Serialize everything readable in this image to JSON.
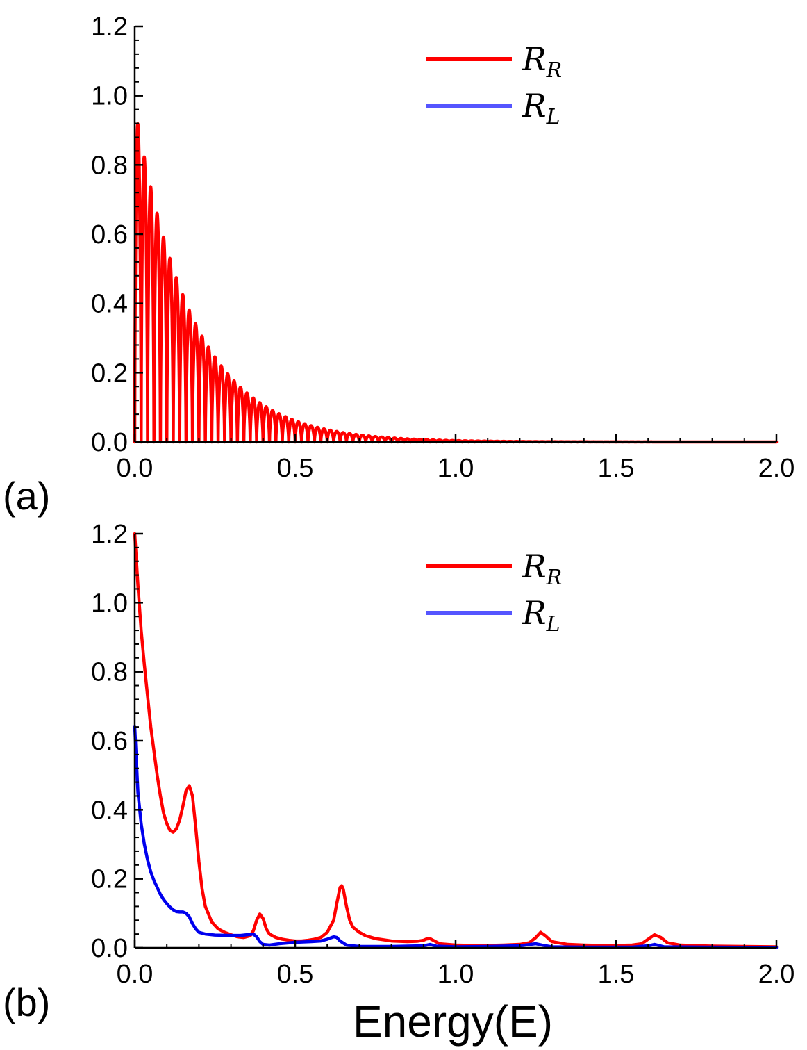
{
  "figure": {
    "xlabel": "Energy(E)",
    "panel_labels": [
      "(a)",
      "(b)"
    ]
  },
  "colors": {
    "R_R": "#ff0000",
    "R_L_legend": "#5555ff",
    "R_L_line": "#0000ee",
    "axis": "#000000"
  },
  "chart_data": [
    {
      "type": "line",
      "panel": "(a)",
      "xlim": [
        0,
        2.0
      ],
      "ylim": [
        0,
        1.2
      ],
      "xticks": [
        "0.0",
        "0.5",
        "1.0",
        "1.5",
        "2.0"
      ],
      "yticks": [
        "0.0",
        "0.2",
        "0.4",
        "0.6",
        "0.8",
        "1.0",
        "1.2"
      ],
      "legend": {
        "position": "top-right",
        "entries": [
          {
            "symbol": "R",
            "sub": "R",
            "color": "#ff0000"
          },
          {
            "symbol": "R",
            "sub": "L",
            "color": "#5555ff"
          }
        ]
      },
      "series": [
        {
          "name": "R_R",
          "color": "#ff0000",
          "kind": "oscillation",
          "envelope": {
            "amplitude": 0.97,
            "decay_rate": 5.5
          },
          "period": 0.02
        },
        {
          "name": "R_L",
          "color": "#5555ff",
          "kind": "points",
          "points": []
        }
      ]
    },
    {
      "type": "line",
      "panel": "(b)",
      "xlim": [
        0,
        2.0
      ],
      "ylim": [
        0,
        1.2
      ],
      "xticks": [
        "0.0",
        "0.5",
        "1.0",
        "1.5",
        "2.0"
      ],
      "yticks": [
        "0.0",
        "0.2",
        "0.4",
        "0.6",
        "0.8",
        "1.0",
        "1.2"
      ],
      "legend": {
        "position": "top-right",
        "entries": [
          {
            "symbol": "R",
            "sub": "R",
            "color": "#ff0000"
          },
          {
            "symbol": "R",
            "sub": "L",
            "color": "#5555ff"
          }
        ]
      },
      "series": [
        {
          "name": "R_R",
          "color": "#ff0000",
          "kind": "points",
          "points": [
            [
              0.0,
              1.2
            ],
            [
              0.01,
              1.05
            ],
            [
              0.02,
              0.92
            ],
            [
              0.03,
              0.82
            ],
            [
              0.04,
              0.73
            ],
            [
              0.05,
              0.64
            ],
            [
              0.06,
              0.57
            ],
            [
              0.07,
              0.5
            ],
            [
              0.08,
              0.44
            ],
            [
              0.09,
              0.39
            ],
            [
              0.1,
              0.36
            ],
            [
              0.11,
              0.34
            ],
            [
              0.12,
              0.335
            ],
            [
              0.13,
              0.345
            ],
            [
              0.14,
              0.37
            ],
            [
              0.15,
              0.41
            ],
            [
              0.16,
              0.455
            ],
            [
              0.17,
              0.47
            ],
            [
              0.18,
              0.44
            ],
            [
              0.19,
              0.35
            ],
            [
              0.2,
              0.25
            ],
            [
              0.21,
              0.17
            ],
            [
              0.22,
              0.12
            ],
            [
              0.24,
              0.075
            ],
            [
              0.26,
              0.055
            ],
            [
              0.28,
              0.045
            ],
            [
              0.3,
              0.038
            ],
            [
              0.32,
              0.032
            ],
            [
              0.34,
              0.03
            ],
            [
              0.36,
              0.035
            ],
            [
              0.37,
              0.05
            ],
            [
              0.38,
              0.08
            ],
            [
              0.39,
              0.098
            ],
            [
              0.4,
              0.085
            ],
            [
              0.41,
              0.055
            ],
            [
              0.42,
              0.04
            ],
            [
              0.44,
              0.03
            ],
            [
              0.46,
              0.025
            ],
            [
              0.48,
              0.022
            ],
            [
              0.5,
              0.02
            ],
            [
              0.52,
              0.02
            ],
            [
              0.54,
              0.022
            ],
            [
              0.56,
              0.025
            ],
            [
              0.58,
              0.03
            ],
            [
              0.6,
              0.045
            ],
            [
              0.62,
              0.08
            ],
            [
              0.63,
              0.13
            ],
            [
              0.64,
              0.175
            ],
            [
              0.645,
              0.18
            ],
            [
              0.65,
              0.17
            ],
            [
              0.66,
              0.12
            ],
            [
              0.67,
              0.08
            ],
            [
              0.68,
              0.06
            ],
            [
              0.7,
              0.045
            ],
            [
              0.72,
              0.035
            ],
            [
              0.75,
              0.027
            ],
            [
              0.8,
              0.02
            ],
            [
              0.85,
              0.018
            ],
            [
              0.88,
              0.019
            ],
            [
              0.9,
              0.022
            ],
            [
              0.91,
              0.026
            ],
            [
              0.92,
              0.027
            ],
            [
              0.93,
              0.022
            ],
            [
              0.95,
              0.012
            ],
            [
              1.0,
              0.008
            ],
            [
              1.05,
              0.007
            ],
            [
              1.1,
              0.007
            ],
            [
              1.15,
              0.008
            ],
            [
              1.2,
              0.01
            ],
            [
              1.23,
              0.015
            ],
            [
              1.25,
              0.03
            ],
            [
              1.265,
              0.045
            ],
            [
              1.28,
              0.035
            ],
            [
              1.3,
              0.018
            ],
            [
              1.35,
              0.01
            ],
            [
              1.4,
              0.008
            ],
            [
              1.45,
              0.007
            ],
            [
              1.5,
              0.007
            ],
            [
              1.55,
              0.008
            ],
            [
              1.58,
              0.012
            ],
            [
              1.6,
              0.025
            ],
            [
              1.62,
              0.038
            ],
            [
              1.64,
              0.03
            ],
            [
              1.66,
              0.015
            ],
            [
              1.7,
              0.008
            ],
            [
              1.8,
              0.005
            ],
            [
              1.9,
              0.004
            ],
            [
              2.0,
              0.003
            ]
          ]
        },
        {
          "name": "R_L",
          "color": "#0000ee",
          "kind": "points",
          "points": [
            [
              0.0,
              0.64
            ],
            [
              0.01,
              0.45
            ],
            [
              0.02,
              0.36
            ],
            [
              0.03,
              0.3
            ],
            [
              0.04,
              0.255
            ],
            [
              0.05,
              0.22
            ],
            [
              0.06,
              0.195
            ],
            [
              0.07,
              0.175
            ],
            [
              0.08,
              0.155
            ],
            [
              0.09,
              0.14
            ],
            [
              0.1,
              0.128
            ],
            [
              0.11,
              0.118
            ],
            [
              0.12,
              0.11
            ],
            [
              0.13,
              0.105
            ],
            [
              0.14,
              0.104
            ],
            [
              0.15,
              0.104
            ],
            [
              0.16,
              0.1
            ],
            [
              0.17,
              0.09
            ],
            [
              0.18,
              0.07
            ],
            [
              0.19,
              0.055
            ],
            [
              0.2,
              0.045
            ],
            [
              0.22,
              0.04
            ],
            [
              0.25,
              0.037
            ],
            [
              0.3,
              0.036
            ],
            [
              0.33,
              0.036
            ],
            [
              0.35,
              0.038
            ],
            [
              0.37,
              0.04
            ],
            [
              0.38,
              0.032
            ],
            [
              0.39,
              0.018
            ],
            [
              0.4,
              0.01
            ],
            [
              0.42,
              0.008
            ],
            [
              0.45,
              0.012
            ],
            [
              0.5,
              0.016
            ],
            [
              0.55,
              0.018
            ],
            [
              0.58,
              0.02
            ],
            [
              0.6,
              0.025
            ],
            [
              0.62,
              0.032
            ],
            [
              0.63,
              0.03
            ],
            [
              0.64,
              0.02
            ],
            [
              0.66,
              0.008
            ],
            [
              0.7,
              0.004
            ],
            [
              0.8,
              0.004
            ],
            [
              0.9,
              0.006
            ],
            [
              0.92,
              0.01
            ],
            [
              0.94,
              0.005
            ],
            [
              1.0,
              0.003
            ],
            [
              1.1,
              0.004
            ],
            [
              1.2,
              0.006
            ],
            [
              1.25,
              0.012
            ],
            [
              1.27,
              0.008
            ],
            [
              1.3,
              0.003
            ],
            [
              1.4,
              0.002
            ],
            [
              1.55,
              0.002
            ],
            [
              1.6,
              0.006
            ],
            [
              1.62,
              0.01
            ],
            [
              1.65,
              0.003
            ],
            [
              1.8,
              0.002
            ],
            [
              2.0,
              0.001
            ]
          ]
        }
      ]
    }
  ]
}
